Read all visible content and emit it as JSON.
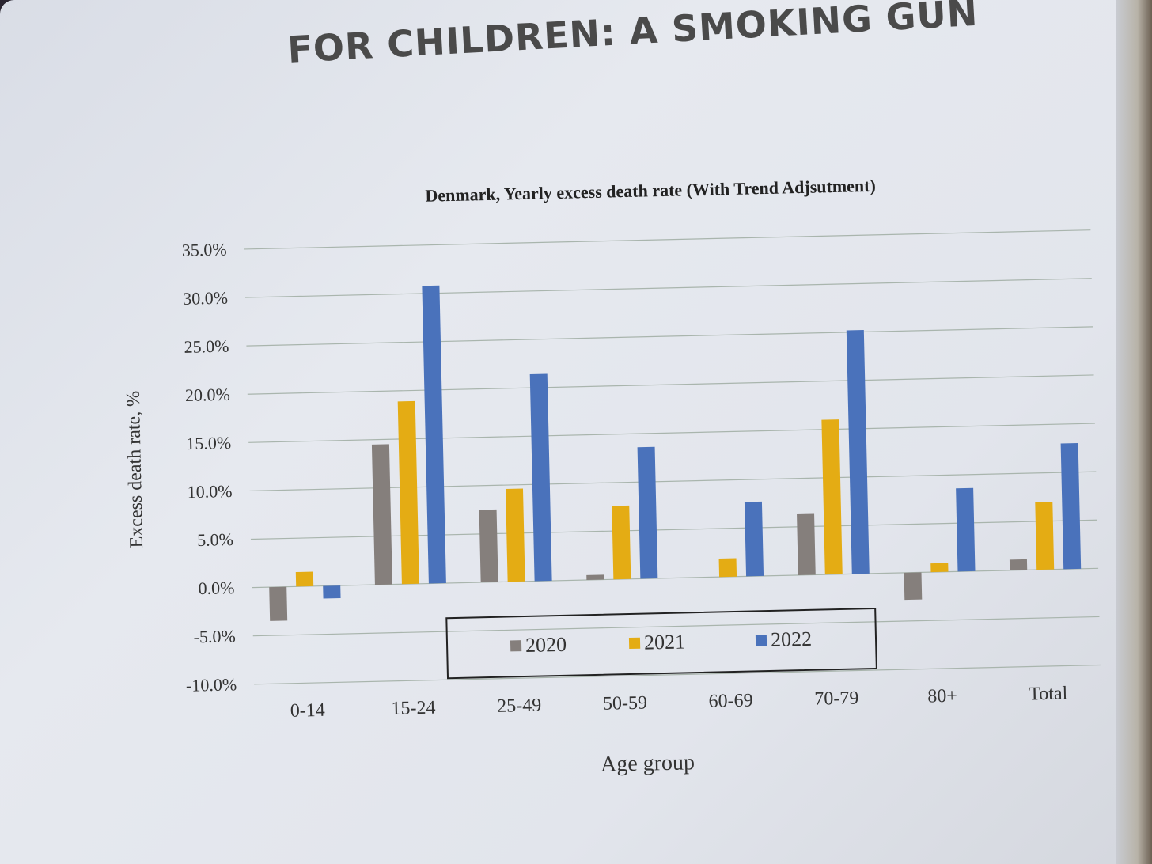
{
  "page": {
    "headline": "FOR CHILDREN: A SMOKING GUN"
  },
  "chart_data": {
    "type": "bar",
    "title": "Denmark, Yearly excess death rate (With Trend Adjsutment)",
    "xlabel": "Age group",
    "ylabel": "Excess death rate, %",
    "categories": [
      "0-14",
      "15-24",
      "25-49",
      "50-59",
      "60-69",
      "70-79",
      "80+",
      "Total"
    ],
    "series": [
      {
        "name": "2020",
        "color": "#857f7c",
        "values": [
          -3.5,
          14.5,
          7.5,
          0.5,
          0.0,
          6.3,
          -2.8,
          1.1
        ]
      },
      {
        "name": "2021",
        "color": "#e4ac14",
        "values": [
          1.5,
          18.9,
          9.6,
          7.6,
          1.9,
          16.0,
          0.9,
          7.0
        ]
      },
      {
        "name": "2022",
        "color": "#4a72bb",
        "values": [
          -1.3,
          30.8,
          21.4,
          13.6,
          7.7,
          25.2,
          8.6,
          13.0
        ]
      }
    ],
    "ylim": [
      -10,
      35
    ],
    "yticks": [
      "-10.0%",
      "-5.0%",
      "0.0%",
      "5.0%",
      "10.0%",
      "15.0%",
      "20.0%",
      "25.0%",
      "30.0%",
      "35.0%"
    ],
    "ytick_values": [
      -10,
      -5,
      0,
      5,
      10,
      15,
      20,
      25,
      30,
      35
    ],
    "grid": true,
    "legend": "bottom-center"
  }
}
